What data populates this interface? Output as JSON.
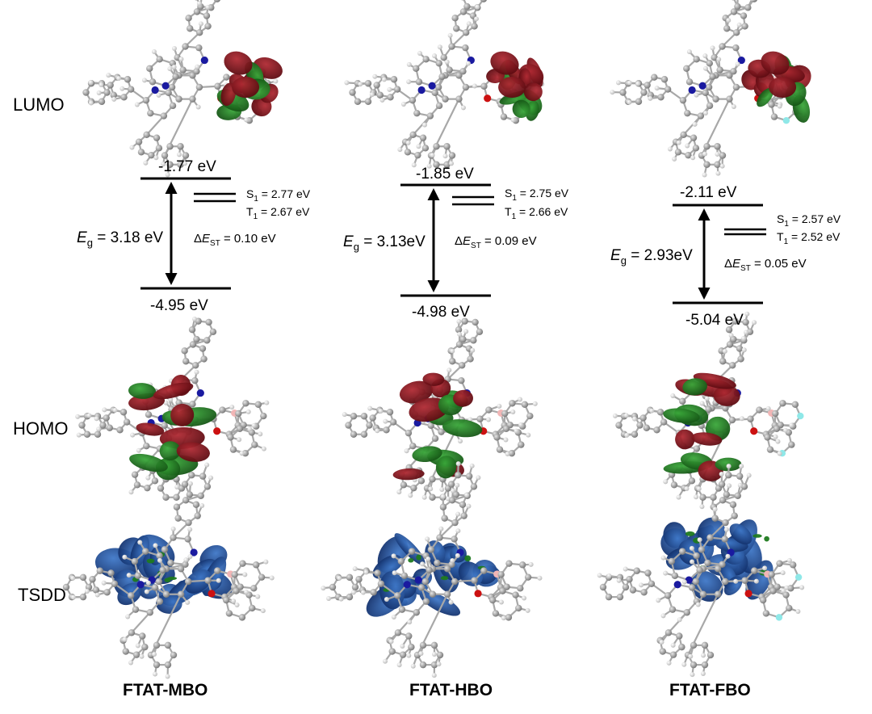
{
  "row_labels": {
    "lumo": "LUMO",
    "homo": "HOMO",
    "tsdd": "TSDD"
  },
  "compounds": [
    {
      "name": "FTAT-MBO",
      "lumo_energy": "-1.77 eV",
      "homo_energy": "-4.95 eV",
      "eg_value": " = 3.18 eV",
      "s1_value": " = 2.77 eV",
      "t1_value": " = 2.67 eV",
      "dest_value": " = 0.10 eV"
    },
    {
      "name": "FTAT-HBO",
      "lumo_energy": "-1.85 eV",
      "homo_energy": "-4.98 eV",
      "eg_value": " = 3.13eV",
      "s1_value": " = 2.75 eV",
      "t1_value": " = 2.66 eV",
      "dest_value": " = 0.09 eV"
    },
    {
      "name": "FTAT-FBO",
      "lumo_energy": "-2.11 eV",
      "homo_energy": "-5.04 eV",
      "eg_value": " = 2.93eV",
      "s1_value": " = 2.57 eV",
      "t1_value": " = 2.52 eV",
      "dest_value": " = 0.05 eV"
    }
  ],
  "symbols": {
    "eg_main": "E",
    "eg_sub": "g",
    "s_main": "S",
    "s_sub": "1",
    "t_main": "T",
    "t_sub": "1",
    "delta": "Δ",
    "est_main": "E",
    "est_sub": "ST"
  },
  "colors": {
    "orbital_positive": "#7a0f17",
    "orbital_negative": "#1f7a1f",
    "density": "#1d4f9c",
    "carbon": "#9a9a9a",
    "hydrogen": "#dcdcdc",
    "nitrogen": "#1a1aa0",
    "oxygen": "#cc1111",
    "boron": "#f2b6b6",
    "fluorine": "#8fe8e8"
  }
}
